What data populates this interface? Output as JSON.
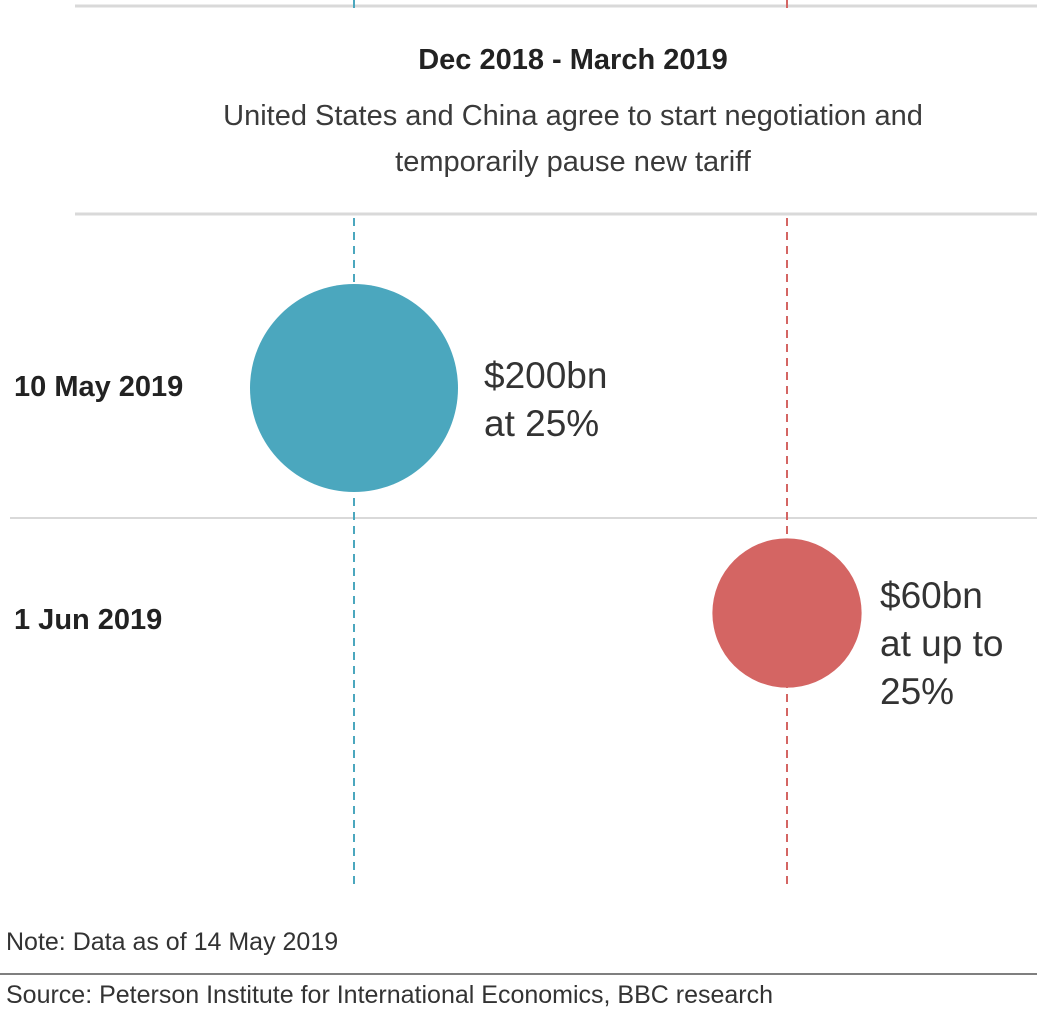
{
  "colors": {
    "series_a": "#4ba7be",
    "series_b": "#d46563",
    "rule": "#d9d9d9",
    "footer_rule": "#555555"
  },
  "period": {
    "title": "Dec 2018 - March 2019",
    "description": "United States and China agree to start negotiation and temporarily pause new tariff"
  },
  "note": "Note: Data as of 14 May 2019",
  "source": "Source: Peterson Institute for International Economics, BBC research",
  "chart_data": {
    "type": "scatter",
    "title": "",
    "columns": [
      "series_a",
      "series_b"
    ],
    "rows": [
      "10 May 2019",
      "1 Jun 2019"
    ],
    "points": [
      {
        "row": "10 May 2019",
        "column": "series_a",
        "value": 200,
        "unit": "bn",
        "label_line1": "$200bn",
        "label_line2": "at 25%",
        "label_line3": ""
      },
      {
        "row": "1 Jun 2019",
        "column": "series_b",
        "value": 60,
        "unit": "bn",
        "label_line1": "$60bn",
        "label_line2": "at up to",
        "label_line3": "25%"
      }
    ]
  }
}
